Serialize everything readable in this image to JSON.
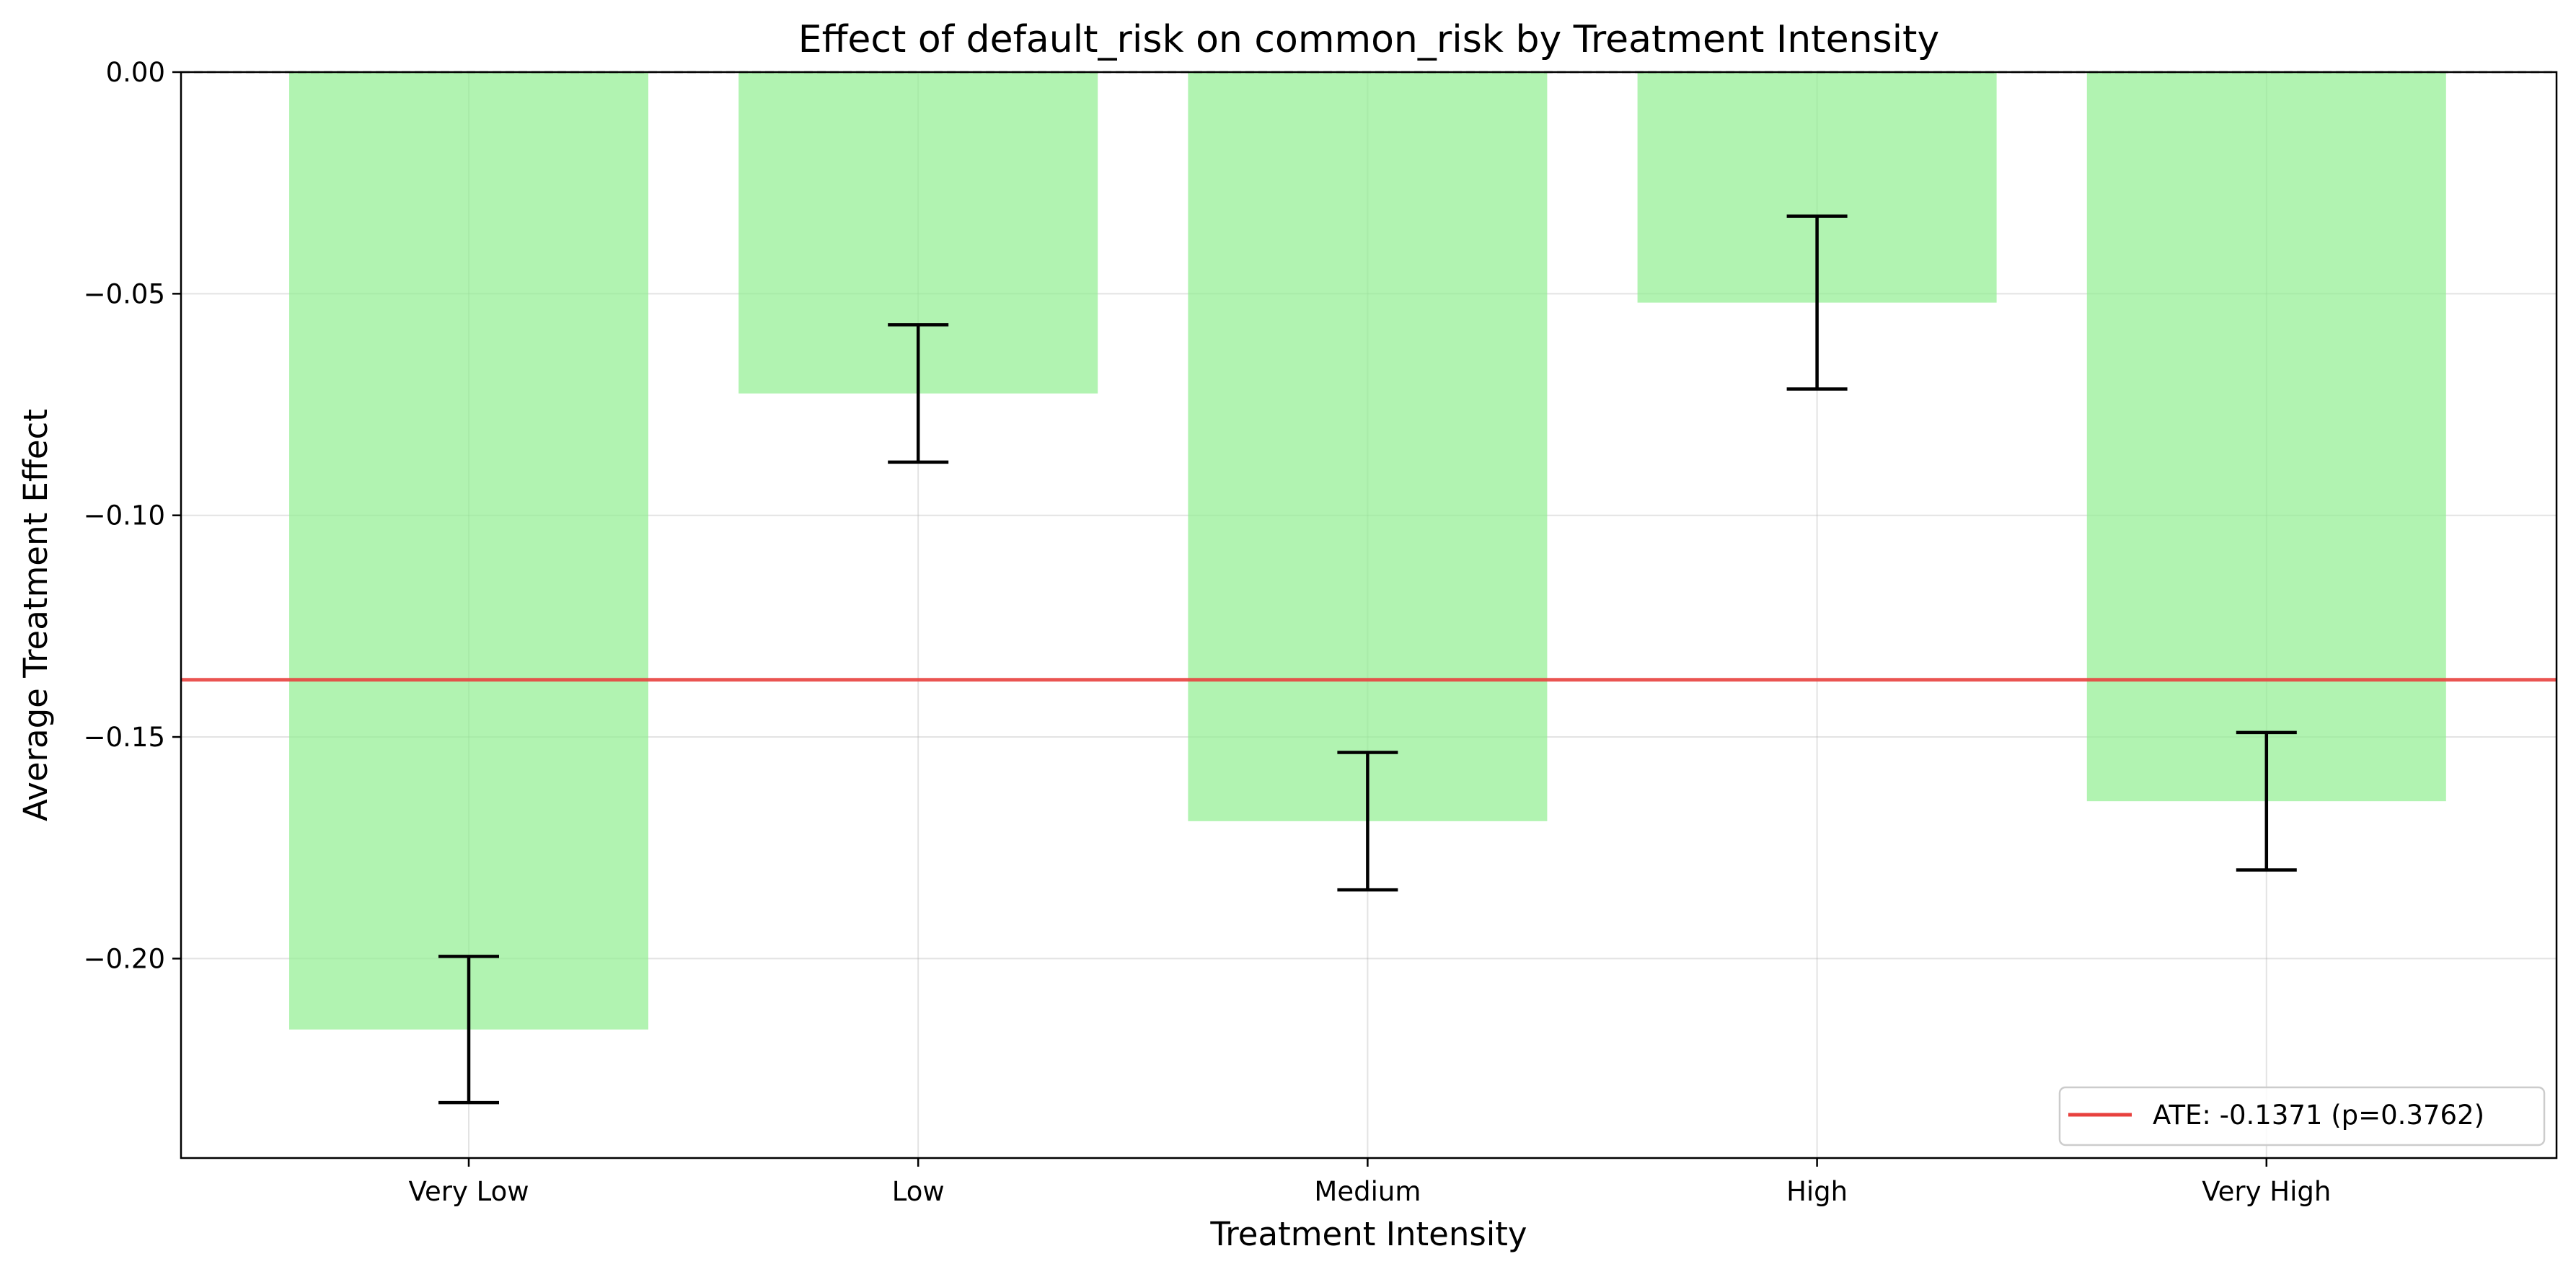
{
  "chart_data": {
    "type": "bar",
    "title": "Effect of default_risk on common_risk by Treatment Intensity",
    "xlabel": "Treatment Intensity",
    "ylabel": "Average Treatment Effect",
    "categories": [
      "Very Low",
      "Low",
      "Medium",
      "High",
      "Very High"
    ],
    "values": [
      -0.216,
      -0.0725,
      -0.169,
      -0.052,
      -0.1645
    ],
    "error_bars": [
      {
        "low": -0.2325,
        "high": -0.1995
      },
      {
        "low": -0.088,
        "high": -0.057
      },
      {
        "low": -0.1845,
        "high": -0.1535
      },
      {
        "low": -0.0715,
        "high": -0.0325
      },
      {
        "low": -0.18,
        "high": -0.149
      }
    ],
    "yticks": [
      0.0,
      -0.05,
      -0.1,
      -0.15,
      -0.2
    ],
    "ytick_labels": [
      "0.00",
      "−0.05",
      "−0.10",
      "−0.15",
      "−0.20"
    ],
    "ylim": [
      -0.245,
      0.0
    ],
    "grid": true,
    "bar_color": "#90ee90",
    "reference_line": {
      "value": -0.1371,
      "color": "#e8413e",
      "label": "ATE: -0.1371 (p=0.3762)"
    },
    "zero_line": {
      "value": 0.0,
      "style": "dashed"
    },
    "legend": {
      "position": "lower-right"
    }
  }
}
